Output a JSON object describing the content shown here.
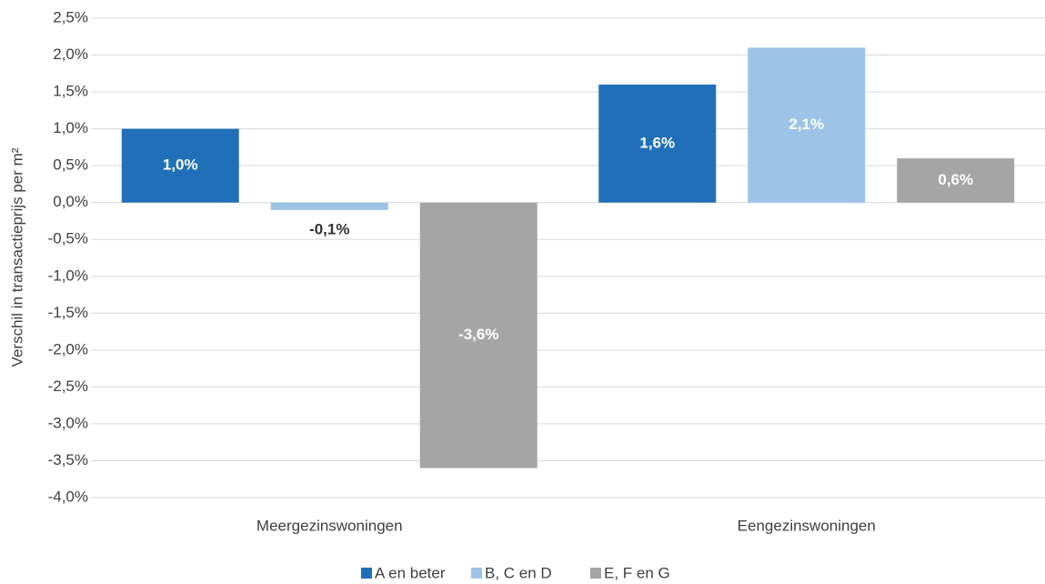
{
  "chart_data": {
    "type": "bar",
    "y_axis_label": "Verschil in transactieprijs per m²",
    "categories": [
      "Meergezinswoningen",
      "Eengezinswoningen"
    ],
    "series": [
      {
        "name": "A en beter",
        "color": "#1f70b8",
        "values": [
          1.0,
          1.6
        ],
        "value_labels": [
          "1,0%",
          "1,6%"
        ]
      },
      {
        "name": "B, C en D",
        "color": "#9dc3e6",
        "values": [
          -0.1,
          2.1
        ],
        "value_labels": [
          "-0,1%",
          "2,1%"
        ]
      },
      {
        "name": "E, F en G",
        "color": "#a5a5a5",
        "values": [
          -3.6,
          0.6
        ],
        "value_labels": [
          "-3,6%",
          "0,6%"
        ]
      }
    ],
    "ylim": [
      -4.0,
      2.5
    ],
    "yticks": [
      {
        "value": -4.0,
        "label": "-4,0%"
      },
      {
        "value": -3.5,
        "label": "-3,5%"
      },
      {
        "value": -3.0,
        "label": "-3,0%"
      },
      {
        "value": -2.5,
        "label": "-2,5%"
      },
      {
        "value": -2.0,
        "label": "-2,0%"
      },
      {
        "value": -1.5,
        "label": "-1,5%"
      },
      {
        "value": -1.0,
        "label": "-1,0%"
      },
      {
        "value": -0.5,
        "label": "-0,5%"
      },
      {
        "value": 0.0,
        "label": "0,0%"
      },
      {
        "value": 0.5,
        "label": "0,5%"
      },
      {
        "value": 1.0,
        "label": "1,0%"
      },
      {
        "value": 1.5,
        "label": "1,5%"
      },
      {
        "value": 2.0,
        "label": "2,0%"
      },
      {
        "value": 2.5,
        "label": "2,5%"
      }
    ],
    "grid": true,
    "legend": "bottom"
  }
}
